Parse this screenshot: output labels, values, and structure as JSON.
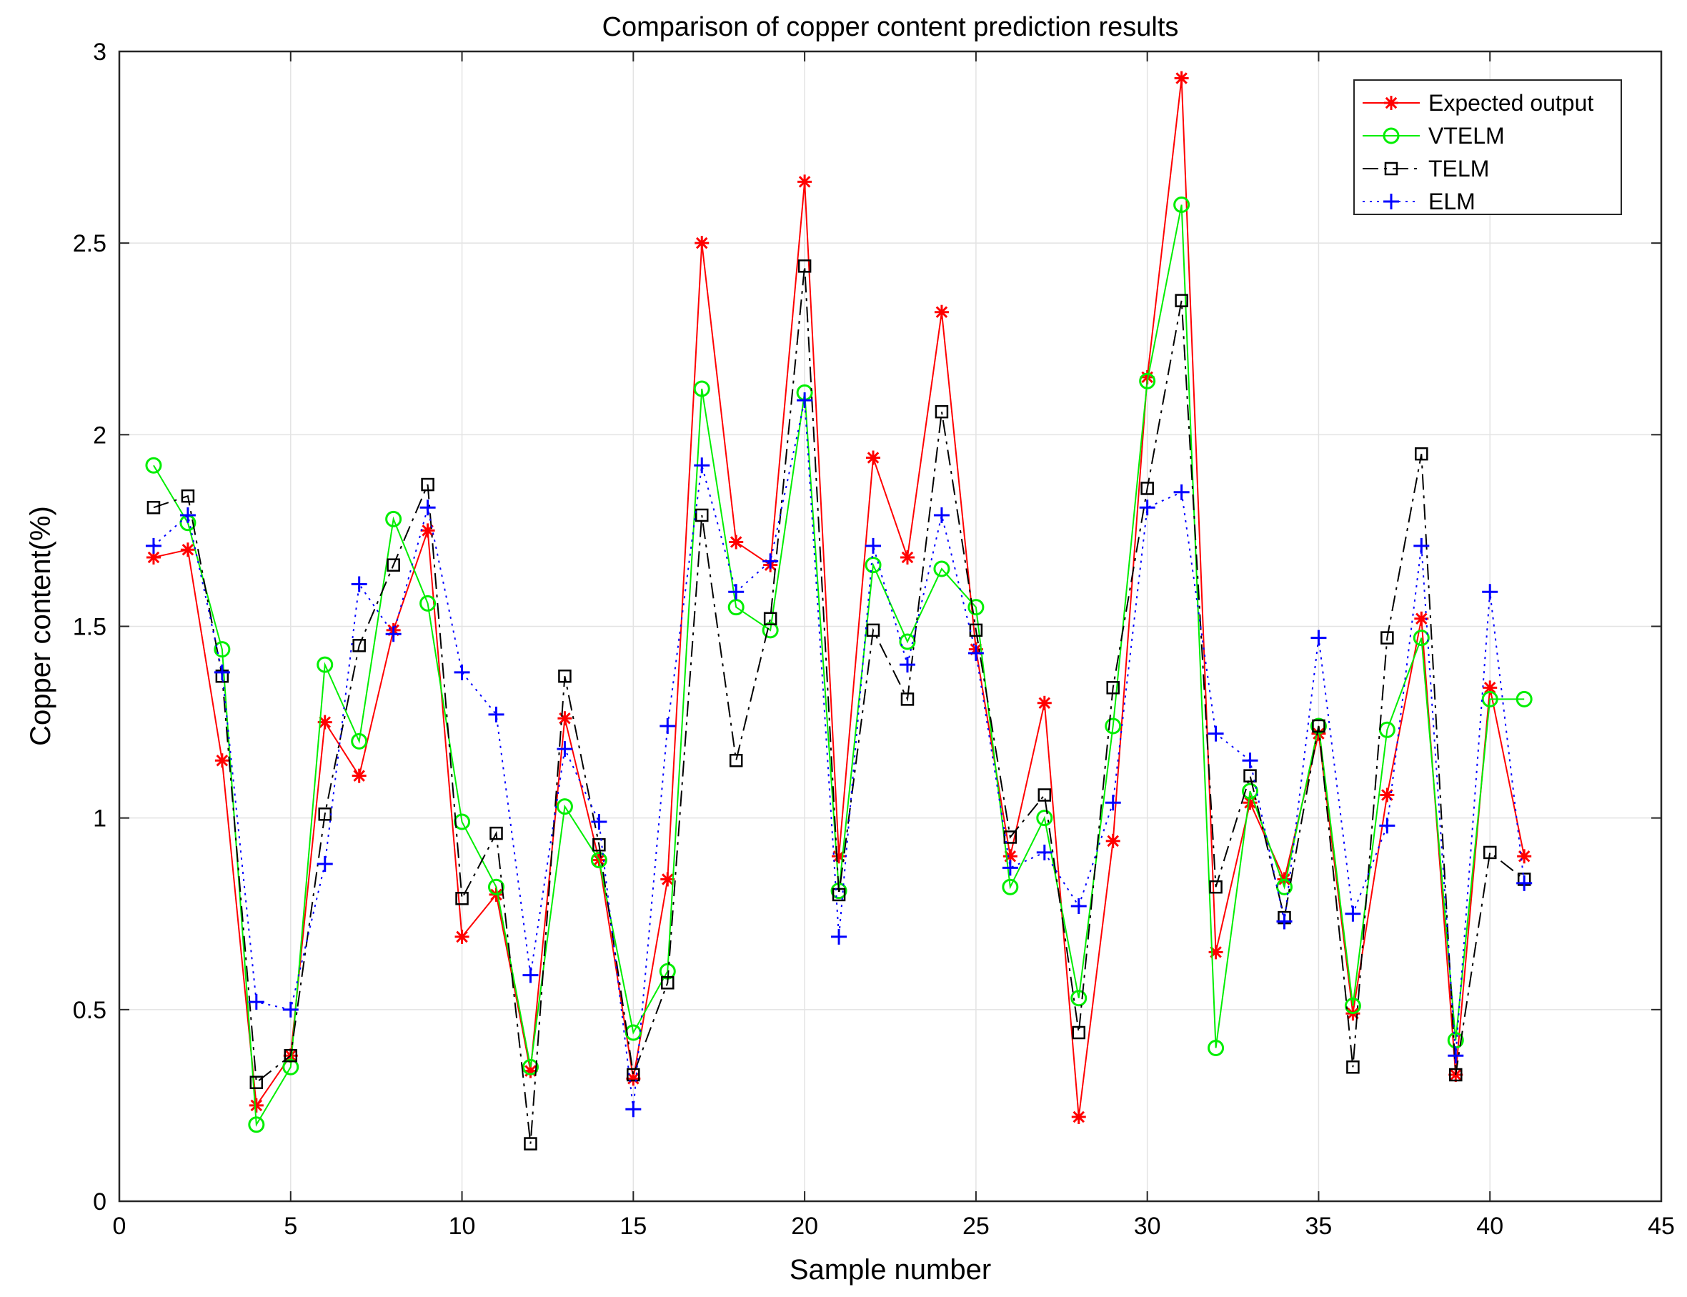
{
  "chart_data": {
    "type": "line",
    "title": "Comparison of copper content prediction results",
    "xlabel": "Sample number",
    "ylabel": "Copper content(%)",
    "xlim": [
      0,
      45
    ],
    "ylim": [
      0,
      3
    ],
    "xticks": [
      0,
      5,
      10,
      15,
      20,
      25,
      30,
      35,
      40,
      45
    ],
    "yticks": [
      0,
      0.5,
      1,
      1.5,
      2,
      2.5,
      3
    ],
    "xtick_labels": [
      "0",
      "5",
      "10",
      "15",
      "20",
      "25",
      "30",
      "35",
      "40",
      "45"
    ],
    "ytick_labels": [
      "0",
      "0.5",
      "1",
      "1.5",
      "2",
      "2.5",
      "3"
    ],
    "grid": true,
    "legend_position": "top-right",
    "x": [
      1,
      2,
      3,
      4,
      5,
      6,
      7,
      8,
      9,
      10,
      11,
      12,
      13,
      14,
      15,
      16,
      17,
      18,
      19,
      20,
      21,
      22,
      23,
      24,
      25,
      26,
      27,
      28,
      29,
      30,
      31,
      32,
      33,
      34,
      35,
      36,
      37,
      38,
      39,
      40,
      41
    ],
    "series": [
      {
        "name": "Expected output",
        "color": "#ff0000",
        "line_style": "solid",
        "marker": "asterisk",
        "values": [
          1.68,
          1.7,
          1.15,
          0.25,
          0.38,
          1.25,
          1.11,
          1.49,
          1.75,
          0.69,
          0.8,
          0.34,
          1.26,
          0.89,
          0.32,
          0.84,
          2.5,
          1.72,
          1.66,
          2.66,
          0.9,
          1.94,
          1.68,
          2.32,
          1.44,
          0.9,
          1.3,
          0.22,
          0.94,
          2.15,
          2.93,
          0.65,
          1.04,
          0.84,
          1.22,
          0.49,
          1.06,
          1.52,
          0.33,
          1.34,
          0.9
        ]
      },
      {
        "name": "VTELM",
        "color": "#00ee00",
        "line_style": "solid",
        "marker": "circle",
        "values": [
          1.92,
          1.77,
          1.44,
          0.2,
          0.35,
          1.4,
          1.2,
          1.78,
          1.56,
          0.99,
          0.82,
          0.35,
          1.03,
          0.89,
          0.44,
          0.6,
          2.12,
          1.55,
          1.49,
          2.11,
          0.81,
          1.66,
          1.46,
          1.65,
          1.55,
          0.82,
          1.0,
          0.53,
          1.24,
          2.14,
          2.6,
          0.4,
          1.07,
          0.82,
          1.24,
          0.51,
          1.23,
          1.47,
          0.42,
          1.31,
          1.31
        ]
      },
      {
        "name": "TELM",
        "color": "#000000",
        "line_style": "dashdot",
        "marker": "square",
        "values": [
          1.81,
          1.84,
          1.37,
          0.31,
          0.38,
          1.01,
          1.45,
          1.66,
          1.87,
          0.79,
          0.96,
          0.15,
          1.37,
          0.93,
          0.33,
          0.57,
          1.79,
          1.15,
          1.52,
          2.44,
          0.8,
          1.49,
          1.31,
          2.06,
          1.49,
          0.95,
          1.06,
          0.44,
          1.34,
          1.86,
          2.35,
          0.82,
          1.11,
          0.74,
          1.24,
          0.35,
          1.47,
          1.95,
          0.33,
          0.91,
          0.84
        ]
      },
      {
        "name": "ELM",
        "color": "#0000ff",
        "line_style": "dotted",
        "marker": "plus",
        "values": [
          1.71,
          1.79,
          1.38,
          0.52,
          0.5,
          0.88,
          1.61,
          1.48,
          1.81,
          1.38,
          1.27,
          0.59,
          1.18,
          0.99,
          0.24,
          1.24,
          1.92,
          1.59,
          1.67,
          2.09,
          0.69,
          1.71,
          1.4,
          1.79,
          1.43,
          0.87,
          0.91,
          0.77,
          1.04,
          1.81,
          1.85,
          1.22,
          1.15,
          0.73,
          1.47,
          0.75,
          0.98,
          1.71,
          0.38,
          1.59,
          0.83
        ]
      }
    ]
  }
}
